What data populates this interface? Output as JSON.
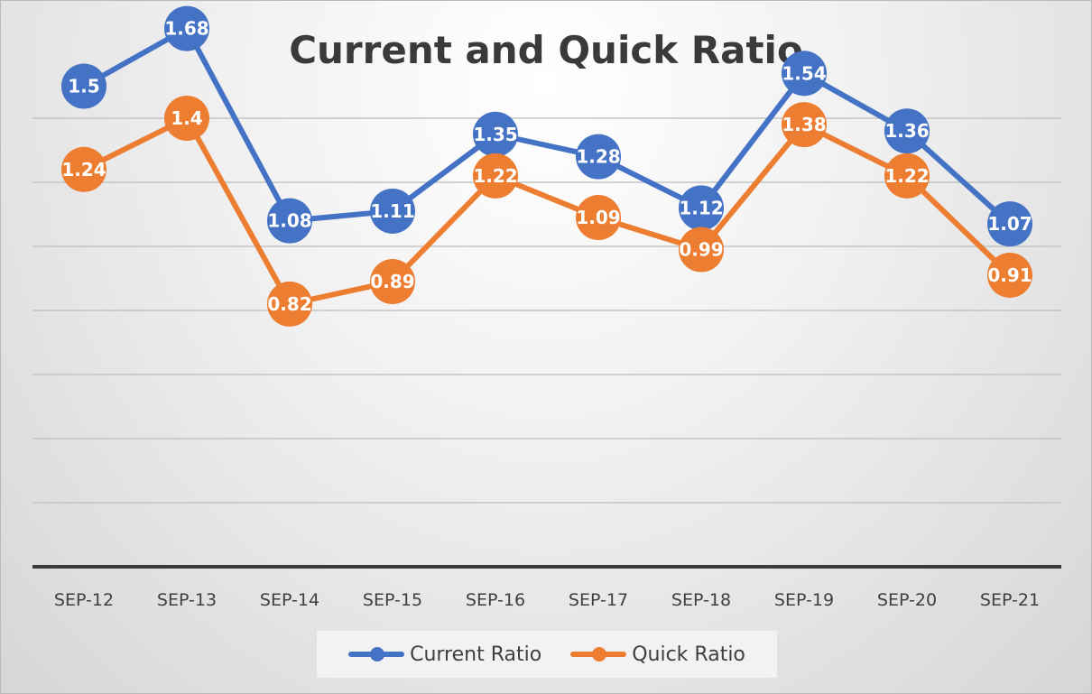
{
  "chart_data": {
    "type": "line",
    "title": "Current and Quick Ratio",
    "categories": [
      "SEP-12",
      "SEP-13",
      "SEP-14",
      "SEP-15",
      "SEP-16",
      "SEP-17",
      "SEP-18",
      "SEP-19",
      "SEP-20",
      "SEP-21"
    ],
    "series": [
      {
        "name": "Current Ratio",
        "color": "#4472C4",
        "values": [
          1.5,
          1.68,
          1.08,
          1.11,
          1.35,
          1.28,
          1.12,
          1.54,
          1.36,
          1.07
        ]
      },
      {
        "name": "Quick Ratio",
        "color": "#ED7D31",
        "values": [
          1.24,
          1.4,
          0.82,
          0.89,
          1.22,
          1.09,
          0.99,
          1.38,
          1.22,
          0.91
        ]
      }
    ],
    "data_labels": true,
    "grid": true,
    "y_axis_labels_shown": false,
    "legend_position": "bottom"
  }
}
